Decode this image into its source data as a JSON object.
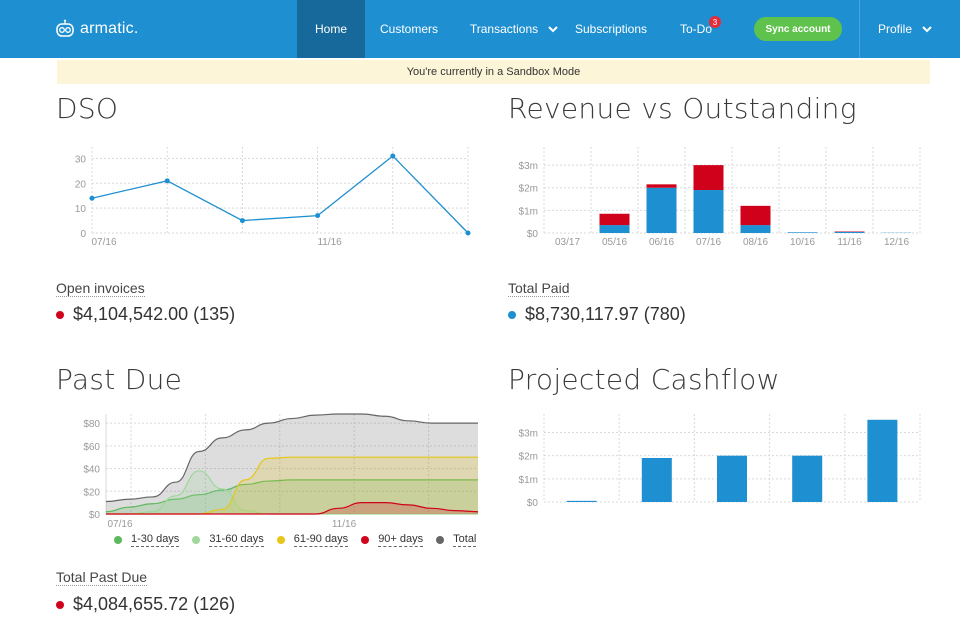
{
  "app": {
    "brand": "armatic.",
    "nav": {
      "home": "Home",
      "customers": "Customers",
      "transactions": "Transactions",
      "subscriptions": "Subscriptions",
      "todo": "To-Do",
      "todo_badge": "3",
      "sync": "Sync account",
      "profile": "Profile"
    },
    "colors": {
      "nav": "#1e8fd1",
      "nav_active": "#16699a",
      "sync": "#5fc24c",
      "badge": "#e52d3a"
    }
  },
  "banner": {
    "text": "You're currently in a Sandbox Mode"
  },
  "dso": {
    "title": "DSO",
    "metric_label": "Open invoices",
    "metric_value": "$4,104,542.00 (135)",
    "metric_color": "#d0021b"
  },
  "revenue": {
    "title": "Revenue vs Outstanding",
    "metric_label": "Total Paid",
    "metric_value": "$8,730,117.97 (780)",
    "metric_color": "#1e8fd1"
  },
  "past_due": {
    "title": "Past Due",
    "metric_label": "Total Past Due",
    "metric_value": "$4,084,655.72 (126)",
    "metric_color": "#d0021b",
    "legend": [
      {
        "label": "1-30 days",
        "color": "#5cb85c"
      },
      {
        "label": "31-60 days",
        "color": "#9fd89a"
      },
      {
        "label": "61-90 days",
        "color": "#e6c619"
      },
      {
        "label": "90+ days",
        "color": "#d0021b"
      },
      {
        "label": "Total",
        "color": "#666666"
      }
    ]
  },
  "cashflow": {
    "title": "Projected Cashflow"
  },
  "chart_data": [
    {
      "type": "line",
      "title": "DSO",
      "x_tick_labels": [
        "07/16",
        "11/16"
      ],
      "yticks": [
        "0",
        "10",
        "20",
        "30"
      ],
      "ylim": [
        0,
        33
      ],
      "values": [
        14,
        21,
        5,
        7,
        31,
        0
      ],
      "color": "#1e8fd1"
    },
    {
      "type": "bar",
      "stacked": true,
      "title": "Revenue vs Outstanding",
      "categories": [
        "03/17",
        "05/16",
        "06/16",
        "07/16",
        "08/16",
        "10/16",
        "11/16",
        "12/16"
      ],
      "yticks": [
        "$0",
        "$1m",
        "$2m",
        "$3m"
      ],
      "ylim": [
        0,
        3.8
      ],
      "series": [
        {
          "color": "#1e8fd1",
          "values": [
            0,
            0.35,
            2.0,
            1.9,
            0.35,
            0.03,
            0.05,
            0.01
          ]
        },
        {
          "color": "#d0021b",
          "values": [
            0,
            0.5,
            0.15,
            1.1,
            0.85,
            0,
            0.02,
            0
          ]
        }
      ]
    },
    {
      "type": "area",
      "title": "Past Due",
      "x_tick_labels": [
        "07/16",
        "11/16"
      ],
      "yticks": [
        "$0",
        "$20",
        "$40",
        "$60",
        "$80"
      ],
      "ylim": [
        0,
        88
      ],
      "x": [
        0,
        1,
        2,
        3,
        4,
        5,
        6,
        7,
        8,
        9,
        10,
        11,
        12,
        13,
        14,
        15,
        16
      ],
      "series": [
        {
          "name": "Total",
          "color": "#666666",
          "values": [
            11,
            13,
            15,
            28,
            55,
            67,
            74,
            80,
            84,
            87,
            88,
            88,
            86,
            82,
            80,
            80,
            80
          ]
        },
        {
          "name": "1-30 days",
          "color": "#5cb85c",
          "values": [
            2,
            6,
            9,
            13,
            17,
            21,
            26,
            29,
            30,
            30,
            30,
            30,
            30,
            30,
            30,
            30,
            30
          ]
        },
        {
          "name": "31-60 days",
          "color": "#9fd89a",
          "values": [
            0,
            0,
            2,
            16,
            38,
            22,
            3,
            0,
            0,
            0,
            0,
            0,
            0,
            0,
            0,
            0,
            0
          ]
        },
        {
          "name": "61-90 days",
          "color": "#e6c619",
          "values": [
            0,
            0,
            0,
            0,
            0,
            4,
            30,
            49,
            50,
            50,
            50,
            50,
            50,
            50,
            50,
            50,
            50
          ]
        },
        {
          "name": "90+ days",
          "color": "#d0021b",
          "values": [
            0,
            0,
            0,
            0,
            0,
            0,
            0,
            0,
            0,
            0,
            5,
            10,
            10,
            8,
            5,
            3,
            2
          ]
        }
      ]
    },
    {
      "type": "bar",
      "title": "Projected Cashflow",
      "categories": [
        "",
        "",
        "",
        "",
        ""
      ],
      "yticks": [
        "$0",
        "$1m",
        "$2m",
        "$3m"
      ],
      "ylim": [
        0,
        3.8
      ],
      "values": [
        0.05,
        1.9,
        2.0,
        2.0,
        3.55
      ],
      "color": "#1e8fd1"
    }
  ]
}
